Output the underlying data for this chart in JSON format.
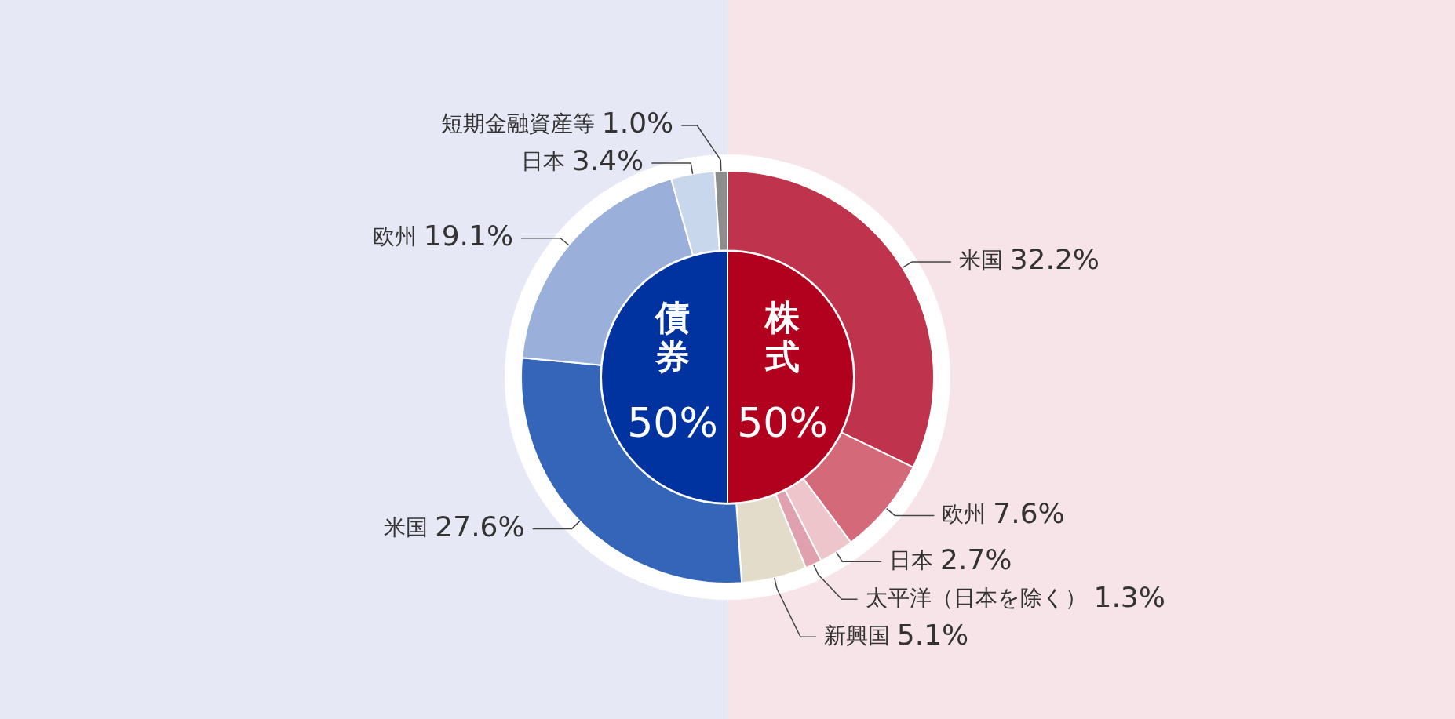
{
  "chart_data": [
    {
      "type": "pie",
      "categories": [
        "株式",
        "債券"
      ],
      "values": [
        50,
        50
      ],
      "colors": [
        "#b2001f",
        "#0033a0"
      ],
      "value_labels": [
        "50%",
        "50%"
      ]
    },
    {
      "type": "donut",
      "categories": [
        "米国",
        "欧州",
        "日本",
        "太平洋（日本を除く）",
        "新興国",
        "米国",
        "欧州",
        "日本",
        "短期金融資産等"
      ],
      "values": [
        32.2,
        7.6,
        2.7,
        1.3,
        5.1,
        27.6,
        19.1,
        3.4,
        1.0
      ],
      "colors": [
        "#c0334d",
        "#d4697a",
        "#efc5cc",
        "#e0a0ad",
        "#e4dccb",
        "#3465b8",
        "#9ab0da",
        "#c9d7ec",
        "#8c8c8c"
      ],
      "value_labels": [
        "32.2%",
        "7.6%",
        "2.7%",
        "1.3%",
        "5.1%",
        "27.6%",
        "19.1%",
        "3.4%",
        "1.0%"
      ]
    }
  ]
}
